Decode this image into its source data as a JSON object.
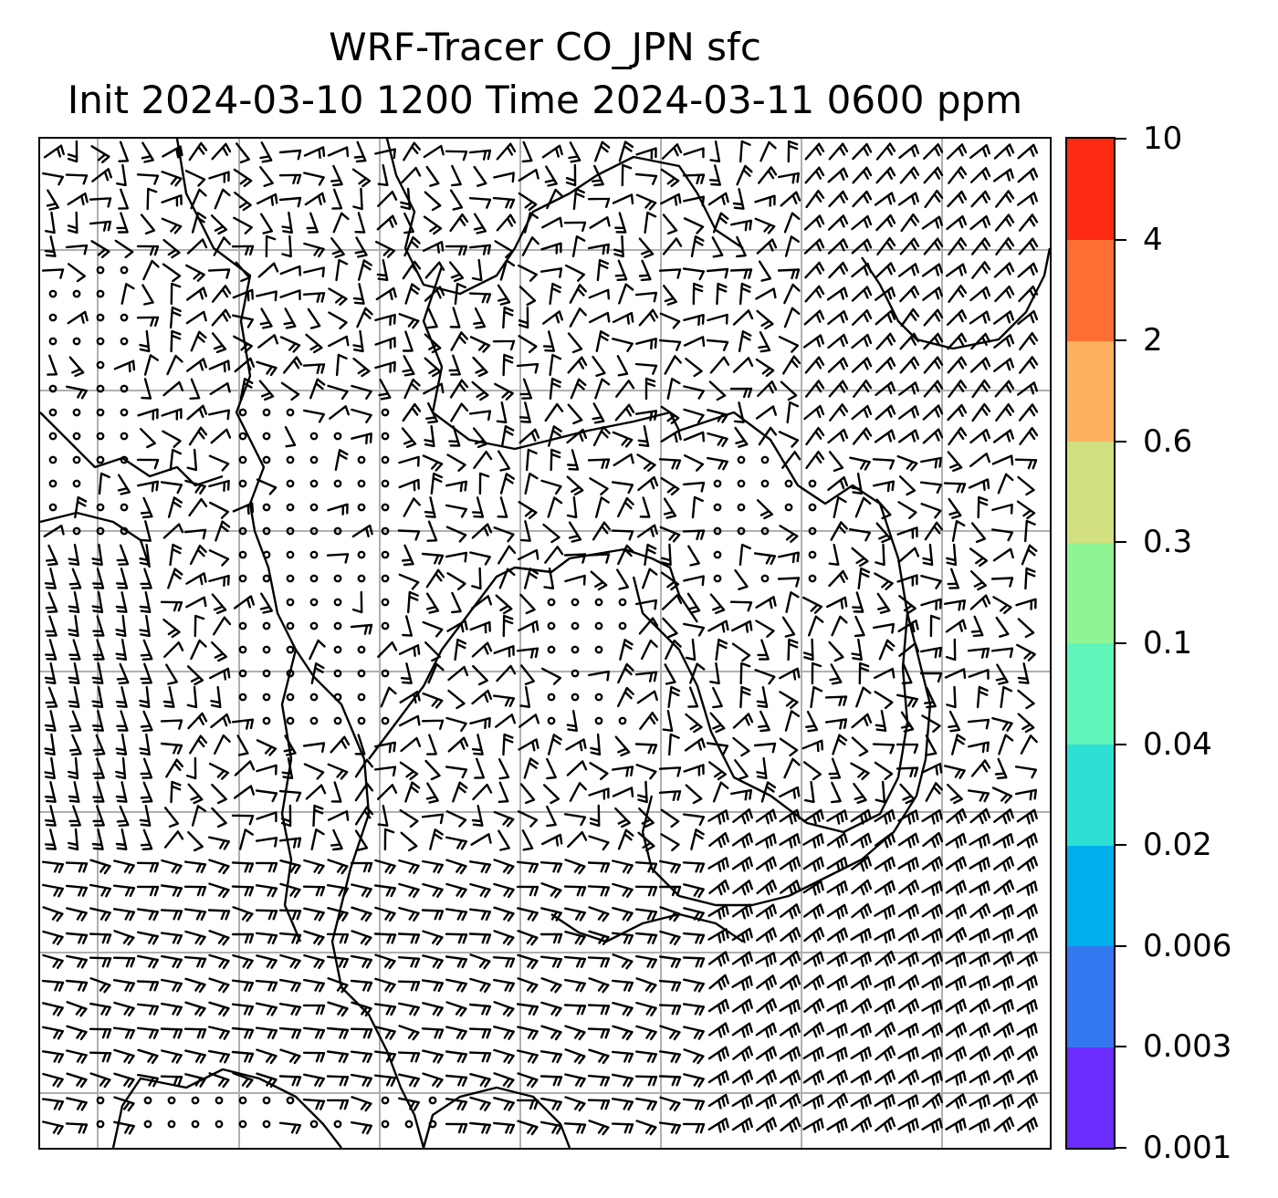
{
  "title": {
    "line1": "WRF-Tracer CO_JPN sfc",
    "line2": "Init 2024-03-10 1200 Time 2024-03-11 0600 ppm"
  },
  "map": {
    "grid": "on",
    "grid_color": "#b0b0b0",
    "coastline_color": "#000000",
    "wind_symbol": "barb",
    "lon_gridlines": 8,
    "lat_gridlines": 8
  },
  "colorbar": {
    "colors": [
      "#6a2cff",
      "#3478f0",
      "#00b0ec",
      "#2edfd4",
      "#5ff5b9",
      "#8ff593",
      "#d2e07f",
      "#fdb15f",
      "#ff6f34",
      "#ff2a12"
    ],
    "labels": [
      "0.001",
      "0.003",
      "0.006",
      "0.02",
      "0.04",
      "0.1",
      "0.3",
      "0.6",
      "2",
      "4",
      "10"
    ]
  }
}
